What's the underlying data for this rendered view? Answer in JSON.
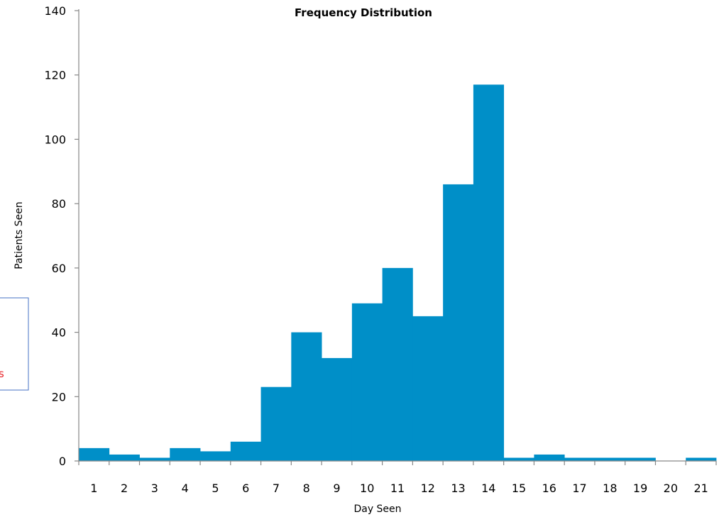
{
  "chart_data": {
    "type": "bar",
    "title": "Frequency Distribution",
    "xlabel": "Day Seen",
    "ylabel": "Patients Seen",
    "categories": [
      "1",
      "2",
      "3",
      "4",
      "5",
      "6",
      "7",
      "8",
      "9",
      "10",
      "11",
      "12",
      "13",
      "14",
      "15",
      "16",
      "17",
      "18",
      "19",
      "20",
      "21"
    ],
    "values": [
      4,
      2,
      1,
      4,
      3,
      6,
      23,
      40,
      32,
      49,
      60,
      45,
      86,
      117,
      1,
      2,
      1,
      1,
      1,
      0,
      1
    ],
    "ylim": [
      0,
      140
    ],
    "yticks": [
      0,
      20,
      40,
      60,
      80,
      100,
      120,
      140
    ],
    "grid": false,
    "legend": "none",
    "colors": {
      "bar": "#008fc8",
      "axis": "#868686",
      "note_border": "#4472c4",
      "note_text": "#e8262b"
    }
  },
  "side_note": {
    "text": "s"
  }
}
